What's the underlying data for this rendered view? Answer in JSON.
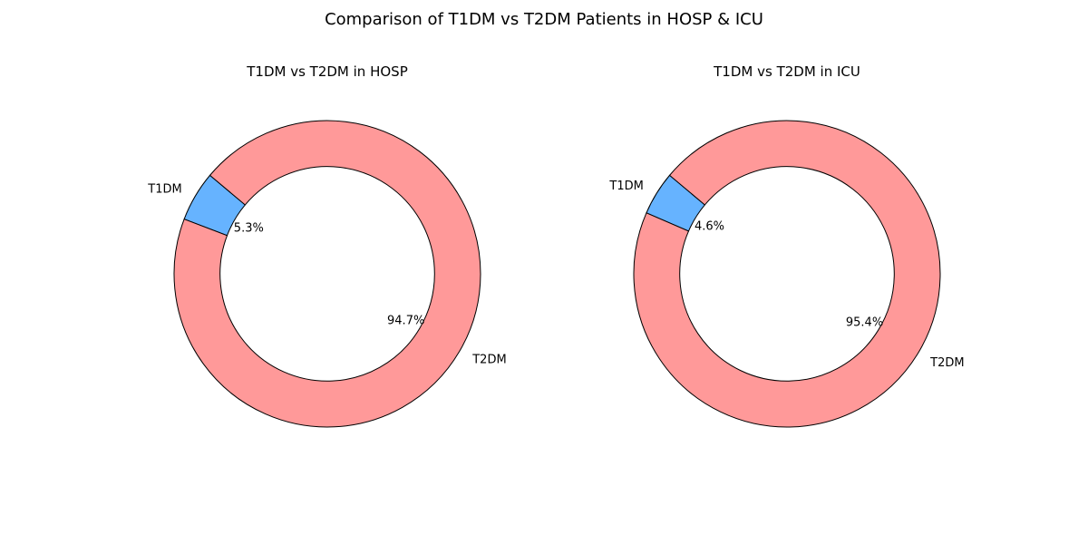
{
  "title": "Comparison of T1DM vs T2DM Patients in HOSP & ICU",
  "colors": {
    "T1DM": "#66b3ff",
    "T2DM": "#ff9999",
    "edge": "#000000"
  },
  "chart_data": [
    {
      "type": "pie",
      "style": "donut",
      "title": "T1DM vs T2DM in HOSP",
      "categories": [
        "T1DM",
        "T2DM"
      ],
      "values": [
        5.3,
        94.7
      ],
      "value_labels": [
        "5.3%",
        "94.7%"
      ],
      "start_angle_deg": 140,
      "direction": "counterclockwise"
    },
    {
      "type": "pie",
      "style": "donut",
      "title": "T1DM vs T2DM in ICU",
      "categories": [
        "T1DM",
        "T2DM"
      ],
      "values": [
        4.6,
        95.4
      ],
      "value_labels": [
        "4.6%",
        "95.4%"
      ],
      "start_angle_deg": 140,
      "direction": "counterclockwise"
    }
  ]
}
